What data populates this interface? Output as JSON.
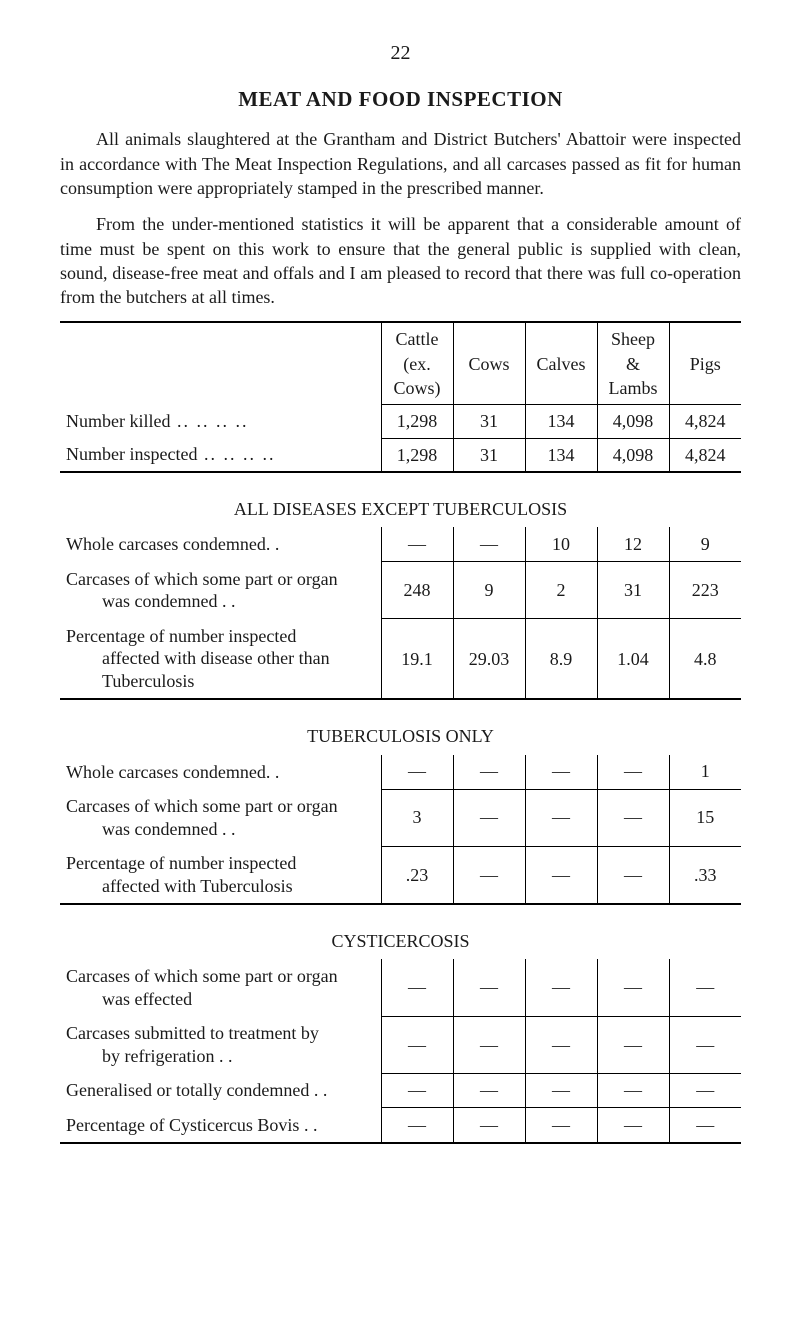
{
  "page_number": "22",
  "title": "MEAT AND FOOD INSPECTION",
  "paragraphs": {
    "p1": "All animals slaughtered at the Grantham and District Butchers' Abattoir were inspected in accordance with The Meat Inspection Regulations, and all carcases passed as fit for human consumption were appropriately stamped in the prescribed manner.",
    "p2": "From the under-mentioned statistics it will be apparent that a considerable amount of time must be spent on this work to ensure that the general public is supplied with clean, sound, disease-free meat and offals and I am pleased to record that there was full co-operation from the butchers at all times."
  },
  "main_table": {
    "columns": {
      "c1": "Cattle (ex. Cows)",
      "c2": "Cows",
      "c3": "Calves",
      "c4": "Sheep & Lambs",
      "c5": "Pigs"
    },
    "rows": {
      "r1": {
        "label": "Number killed",
        "v": [
          "1,298",
          "31",
          "134",
          "4,098",
          "4,824"
        ]
      },
      "r2": {
        "label": "Number inspected",
        "v": [
          "1,298",
          "31",
          "134",
          "4,098",
          "4,824"
        ]
      }
    }
  },
  "section1": {
    "heading": "ALL DISEASES EXCEPT TUBERCULOSIS",
    "rows": {
      "r1": {
        "label": "Whole carcases condemned. .",
        "v": [
          "—",
          "—",
          "10",
          "12",
          "9"
        ]
      },
      "r2": {
        "label_a": "Carcases of which some part or organ",
        "label_b": "was condemned   . .",
        "v": [
          "248",
          "9",
          "2",
          "31",
          "223"
        ]
      },
      "r3": {
        "label_a": "Percentage  of  number  inspected",
        "label_b": "affected with disease other than",
        "label_c": "Tuberculosis",
        "v": [
          "19.1",
          "29.03",
          "8.9",
          "1.04",
          "4.8"
        ]
      }
    }
  },
  "section2": {
    "heading": "TUBERCULOSIS ONLY",
    "rows": {
      "r1": {
        "label": "Whole carcases condemned. .",
        "v": [
          "—",
          "—",
          "—",
          "—",
          "1"
        ]
      },
      "r2": {
        "label_a": "Carcases of which some part or organ",
        "label_b": "was condemned   . .",
        "v": [
          "3",
          "—",
          "—",
          "—",
          "15"
        ]
      },
      "r3": {
        "label_a": "Percentage  of  number  inspected",
        "label_b": "affected with Tuberculosis",
        "v": [
          ".23",
          "—",
          "—",
          "—",
          ".33"
        ]
      }
    }
  },
  "section3": {
    "heading": "CYSTICERCOSIS",
    "rows": {
      "r1": {
        "label_a": "Carcases of which some part or organ",
        "label_b": "was effected",
        "v": [
          "—",
          "—",
          "—",
          "—",
          "—"
        ]
      },
      "r2": {
        "label_a": "Carcases submitted to treatment by",
        "label_b": "by refrigeration   . .",
        "v": [
          "—",
          "—",
          "—",
          "—",
          "—"
        ]
      },
      "r3": {
        "label": "Generalised or totally condemned . .",
        "v": [
          "—",
          "—",
          "—",
          "—",
          "—"
        ]
      },
      "r4": {
        "label": "Percentage of Cysticercus Bovis   . .",
        "v": [
          "—",
          "—",
          "—",
          "—",
          "—"
        ]
      }
    }
  }
}
